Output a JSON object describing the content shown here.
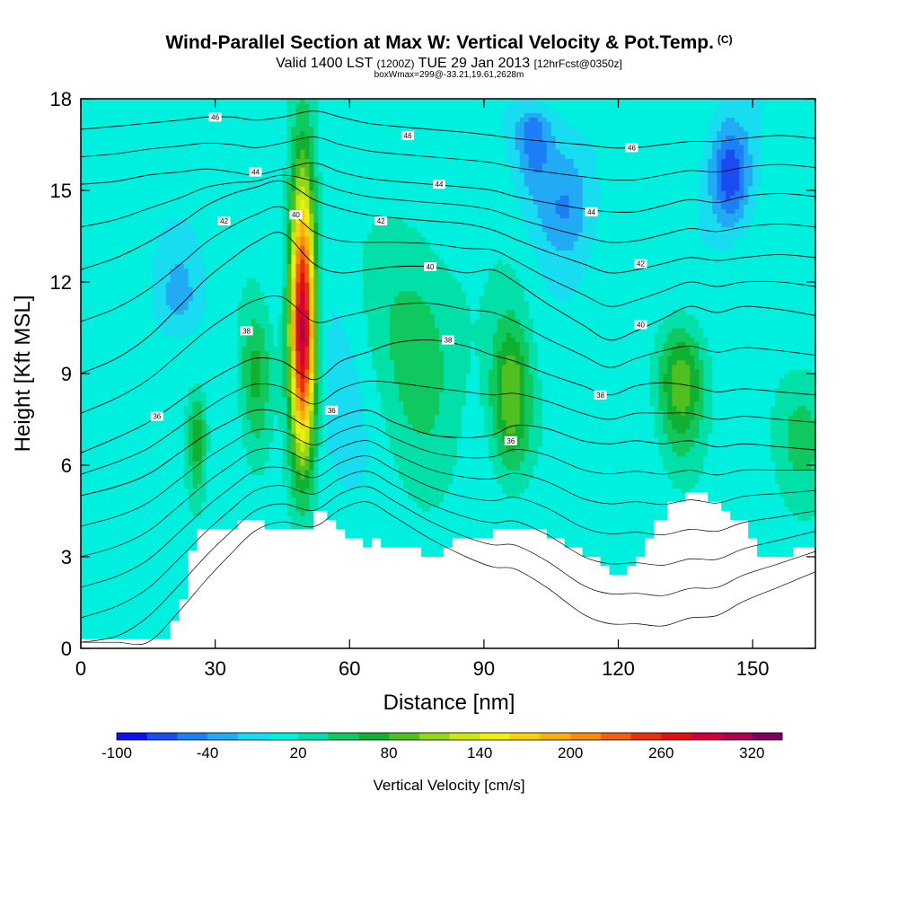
{
  "header": {
    "title": "Wind-Parallel Section at Max W: Vertical Velocity & Pot.Temp.",
    "copyright_mark": "(C)",
    "valid_prefix": "Valid 1400 LST",
    "valid_utc": "(1200Z)",
    "valid_date": "TUE 29 Jan 2013",
    "forecast_info": "[12hrFcst@0350z]",
    "box_info": "boxWmax=299@-33.21,19.61,2628m"
  },
  "chart_data": {
    "type": "heatmap",
    "xlabel": "Distance [nm]",
    "ylabel": "Height [Kft MSL]",
    "xlim": [
      0,
      164
    ],
    "ylim": [
      0,
      18
    ],
    "xticks": [
      0,
      30,
      60,
      90,
      120,
      150
    ],
    "yticks": [
      0,
      3,
      6,
      9,
      12,
      15,
      18
    ],
    "colorbar": {
      "label": "Vertical Velocity [cm/s]",
      "tick_labels": [
        "-100",
        "-40",
        "20",
        "80",
        "140",
        "200",
        "260",
        "320"
      ],
      "tick_values": [
        -100,
        -40,
        20,
        80,
        140,
        200,
        260,
        320
      ],
      "range": [
        -100,
        340
      ],
      "step": 20,
      "colors": [
        "#1010ee",
        "#1a4cf2",
        "#1c7ff5",
        "#22aaf5",
        "#18ddf0",
        "#00f0e0",
        "#00e0a8",
        "#10c860",
        "#10b030",
        "#50c020",
        "#90d818",
        "#c8e810",
        "#f0f010",
        "#f8d010",
        "#f8b010",
        "#f88c10",
        "#f06010",
        "#e83010",
        "#e01010",
        "#d00040",
        "#b00050",
        "#800060"
      ]
    },
    "terrain_profile": {
      "x": [
        0,
        17,
        20,
        22,
        24,
        26,
        33,
        35,
        39,
        41,
        44,
        52,
        55,
        57,
        59,
        63,
        65,
        67,
        70,
        73,
        76,
        79,
        81,
        83,
        86,
        89,
        92,
        95,
        98,
        101,
        104,
        106,
        108,
        110,
        112,
        114,
        116,
        118,
        120,
        122,
        124,
        126,
        128,
        131,
        135,
        138,
        140,
        143,
        145,
        149,
        151,
        153,
        155,
        157,
        159,
        164
      ],
      "height": [
        0.3,
        0.3,
        0.9,
        1.6,
        3.2,
        3.9,
        3.9,
        4.2,
        4.2,
        3.9,
        3.9,
        4.5,
        4.2,
        3.9,
        3.6,
        3.3,
        3.6,
        3.3,
        3.3,
        3.3,
        3.0,
        3.0,
        3.3,
        3.6,
        3.6,
        3.6,
        3.9,
        3.9,
        3.9,
        3.9,
        3.6,
        3.6,
        3.3,
        3.3,
        3.0,
        3.0,
        2.7,
        2.4,
        2.4,
        2.7,
        3.0,
        3.6,
        4.2,
        4.8,
        5.1,
        5.1,
        4.8,
        4.5,
        4.2,
        3.6,
        3.0,
        3.0,
        3.0,
        3.0,
        3.3,
        3.3
      ]
    },
    "vertical_velocity_features": [
      {
        "x_center": 49.5,
        "x_halfwidth": 2.8,
        "z_bottom": 4.6,
        "z_peak": 10.5,
        "z_top": 17.6,
        "peak": 300
      },
      {
        "x_center": 96.0,
        "x_halfwidth": 4.5,
        "z_bottom": 4.5,
        "z_peak": 8.2,
        "z_top": 12.0,
        "peak": 95
      },
      {
        "x_center": 134.0,
        "x_halfwidth": 5.0,
        "z_bottom": 5.5,
        "z_peak": 8.8,
        "z_top": 11.5,
        "peak": 85
      },
      {
        "x_center": 39.0,
        "x_halfwidth": 3.5,
        "z_bottom": 4.5,
        "z_peak": 9.0,
        "z_top": 12.0,
        "peak": 60
      },
      {
        "x_center": 26.0,
        "x_halfwidth": 2.0,
        "z_bottom": 4.0,
        "z_peak": 7.0,
        "z_top": 9.0,
        "peak": 60
      },
      {
        "x_center": 75.0,
        "x_halfwidth": 10.0,
        "z_bottom": 4.0,
        "z_peak": 10.0,
        "z_top": 15.5,
        "peak": 45
      },
      {
        "x_center": 160.0,
        "x_halfwidth": 7.0,
        "z_bottom": 3.5,
        "z_peak": 7.0,
        "z_top": 10.0,
        "peak": 35
      },
      {
        "x_center": 22.0,
        "x_halfwidth": 5.0,
        "z_bottom": 10.0,
        "z_peak": 11.5,
        "z_top": 14.0,
        "peak": -30
      },
      {
        "x_center": 58.0,
        "x_halfwidth": 6.0,
        "z_bottom": 4.5,
        "z_peak": 8.0,
        "z_top": 13.0,
        "peak": -22
      },
      {
        "x_center": 145.0,
        "x_halfwidth": 4.5,
        "z_bottom": 13.0,
        "z_peak": 15.5,
        "z_top": 18.0,
        "peak": -85
      },
      {
        "x_center": 101.0,
        "x_halfwidth": 4.0,
        "z_bottom": 14.0,
        "z_peak": 17.0,
        "z_top": 18.0,
        "peak": -60
      },
      {
        "x_center": 108.0,
        "x_halfwidth": 6.0,
        "z_bottom": 12.0,
        "z_peak": 14.5,
        "z_top": 18.0,
        "peak": -45
      }
    ],
    "potential_temperature_isentropes": [
      {
        "label": "36",
        "x": [
          0,
          8,
          15,
          22,
          28,
          33,
          39,
          45,
          52,
          58,
          64,
          70,
          78,
          86,
          92,
          97,
          104,
          112,
          118,
          124,
          130,
          136,
          142,
          148,
          156,
          164
        ],
        "y": [
          5.0,
          5.3,
          5.7,
          6.4,
          7.0,
          7.4,
          7.8,
          7.7,
          7.2,
          7.6,
          7.8,
          7.4,
          7.0,
          6.9,
          7.0,
          7.3,
          7.2,
          6.8,
          6.7,
          6.8,
          6.7,
          6.8,
          6.6,
          6.7,
          6.6,
          6.5
        ]
      },
      {
        "label": "38",
        "x": [
          0,
          8,
          15,
          22,
          28,
          34,
          39,
          45,
          52,
          58,
          64,
          70,
          78,
          86,
          92,
          97,
          104,
          112,
          118,
          124,
          130,
          136,
          142,
          148,
          156,
          164
        ],
        "y": [
          6.4,
          6.9,
          7.4,
          8.1,
          8.7,
          9.2,
          9.5,
          9.4,
          8.8,
          9.4,
          9.7,
          10.0,
          10.1,
          9.9,
          9.6,
          9.4,
          9.0,
          8.6,
          8.3,
          8.6,
          8.7,
          8.6,
          8.4,
          8.5,
          8.4,
          8.3
        ]
      },
      {
        "label": "40",
        "x": [
          0,
          8,
          15,
          22,
          28,
          34,
          39,
          45,
          52,
          58,
          64,
          70,
          78,
          86,
          92,
          97,
          104,
          112,
          118,
          124,
          130,
          136,
          142,
          148,
          156,
          164
        ],
        "y": [
          9.0,
          9.5,
          10.2,
          11.2,
          12.1,
          12.8,
          13.3,
          13.6,
          12.6,
          12.3,
          12.4,
          12.5,
          12.5,
          12.3,
          12.4,
          12.0,
          11.3,
          10.6,
          10.1,
          10.4,
          10.8,
          11.2,
          11.0,
          11.2,
          11.1,
          10.9
        ]
      },
      {
        "label": "42",
        "x": [
          0,
          8,
          15,
          22,
          28,
          34,
          39,
          45,
          52,
          58,
          64,
          70,
          78,
          86,
          92,
          97,
          104,
          112,
          118,
          124,
          130,
          136,
          142,
          148,
          156,
          164
        ],
        "y": [
          12.4,
          12.8,
          13.3,
          13.9,
          14.5,
          14.9,
          15.1,
          15.3,
          14.7,
          14.4,
          14.2,
          14.1,
          14.0,
          13.9,
          13.7,
          13.4,
          13.0,
          12.6,
          12.3,
          12.4,
          12.6,
          12.8,
          12.7,
          12.8,
          12.9,
          12.8
        ]
      },
      {
        "label": "44",
        "x": [
          0,
          8,
          15,
          22,
          28,
          34,
          39,
          45,
          52,
          58,
          64,
          70,
          78,
          86,
          92,
          97,
          104,
          112,
          118,
          124,
          130,
          136,
          142,
          148,
          156,
          164
        ],
        "y": [
          15.2,
          15.3,
          15.5,
          15.6,
          15.7,
          15.6,
          15.5,
          15.7,
          15.9,
          15.6,
          15.4,
          15.3,
          15.2,
          15.1,
          15.0,
          14.8,
          14.6,
          14.4,
          14.3,
          14.3,
          14.5,
          14.7,
          14.6,
          14.8,
          14.9,
          14.8
        ]
      },
      {
        "label": "46",
        "x": [
          0,
          8,
          15,
          22,
          28,
          34,
          39,
          45,
          52,
          58,
          64,
          70,
          78,
          86,
          92,
          97,
          104,
          112,
          118,
          124,
          130,
          136,
          142,
          148,
          156,
          164
        ],
        "y": [
          17.0,
          17.1,
          17.2,
          17.3,
          17.4,
          17.4,
          17.3,
          17.4,
          17.6,
          17.4,
          17.2,
          17.1,
          17.0,
          16.9,
          16.8,
          16.7,
          16.6,
          16.5,
          16.4,
          16.4,
          16.5,
          16.6,
          16.6,
          16.7,
          16.8,
          16.7
        ]
      }
    ],
    "isentrope_labels": [
      {
        "text": "46",
        "x": 30,
        "y": 17.4
      },
      {
        "text": "46",
        "x": 73,
        "y": 16.8
      },
      {
        "text": "46",
        "x": 123,
        "y": 16.4
      },
      {
        "text": "44",
        "x": 39,
        "y": 15.6
      },
      {
        "text": "44",
        "x": 80,
        "y": 15.2
      },
      {
        "text": "44",
        "x": 114,
        "y": 14.3
      },
      {
        "text": "42",
        "x": 32,
        "y": 14.0
      },
      {
        "text": "42",
        "x": 67,
        "y": 14.0
      },
      {
        "text": "42",
        "x": 125,
        "y": 12.6
      },
      {
        "text": "40",
        "x": 48,
        "y": 14.2
      },
      {
        "text": "40",
        "x": 78,
        "y": 12.5
      },
      {
        "text": "40",
        "x": 125,
        "y": 10.6
      },
      {
        "text": "38",
        "x": 37,
        "y": 10.4
      },
      {
        "text": "38",
        "x": 82,
        "y": 10.1
      },
      {
        "text": "38",
        "x": 116,
        "y": 8.3
      },
      {
        "text": "36",
        "x": 17,
        "y": 7.6
      },
      {
        "text": "36",
        "x": 56,
        "y": 7.8
      },
      {
        "text": "36",
        "x": 96,
        "y": 6.8
      }
    ]
  }
}
